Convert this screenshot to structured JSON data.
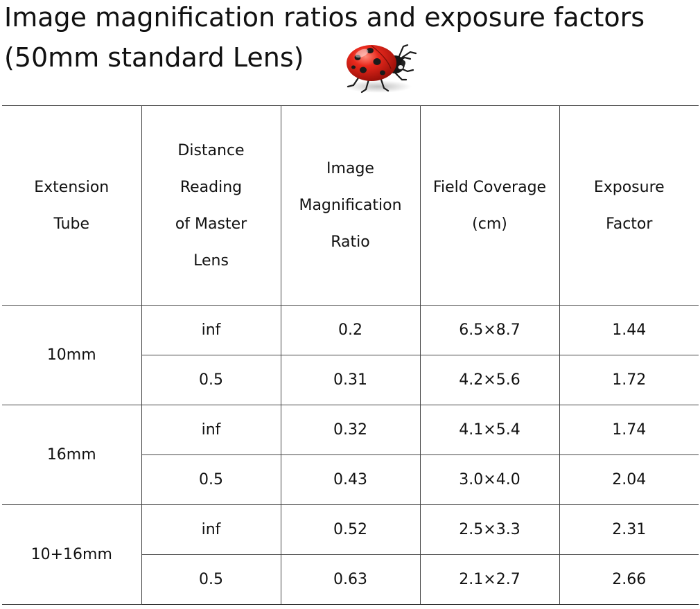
{
  "title": {
    "line1": "Image magnification ratios and exposure factors",
    "line2": "(50mm standard Lens)"
  },
  "decoration": {
    "icon": "ladybug-icon"
  },
  "table": {
    "headers": [
      [
        "Extension",
        "Tube"
      ],
      [
        "Distance",
        "Reading",
        "of Master",
        "Lens"
      ],
      [
        "Image",
        "Magnification",
        "Ratio"
      ],
      [
        "Field Coverage",
        "(cm)"
      ],
      [
        "Exposure",
        "Factor"
      ]
    ],
    "groups": [
      {
        "tube": "10mm",
        "rows": [
          {
            "distance": "inf",
            "ratio": "0.2",
            "coverage": "6.5×8.7",
            "factor": "1.44"
          },
          {
            "distance": "0.5",
            "ratio": "0.31",
            "coverage": "4.2×5.6",
            "factor": "1.72"
          }
        ]
      },
      {
        "tube": "16mm",
        "rows": [
          {
            "distance": "inf",
            "ratio": "0.32",
            "coverage": "4.1×5.4",
            "factor": "1.74"
          },
          {
            "distance": "0.5",
            "ratio": "0.43",
            "coverage": "3.0×4.0",
            "factor": "2.04"
          }
        ]
      },
      {
        "tube": "10+16mm",
        "rows": [
          {
            "distance": "inf",
            "ratio": "0.52",
            "coverage": "2.5×3.3",
            "factor": "2.31"
          },
          {
            "distance": "0.5",
            "ratio": "0.63",
            "coverage": "2.1×2.7",
            "factor": "2.66"
          }
        ]
      }
    ]
  }
}
